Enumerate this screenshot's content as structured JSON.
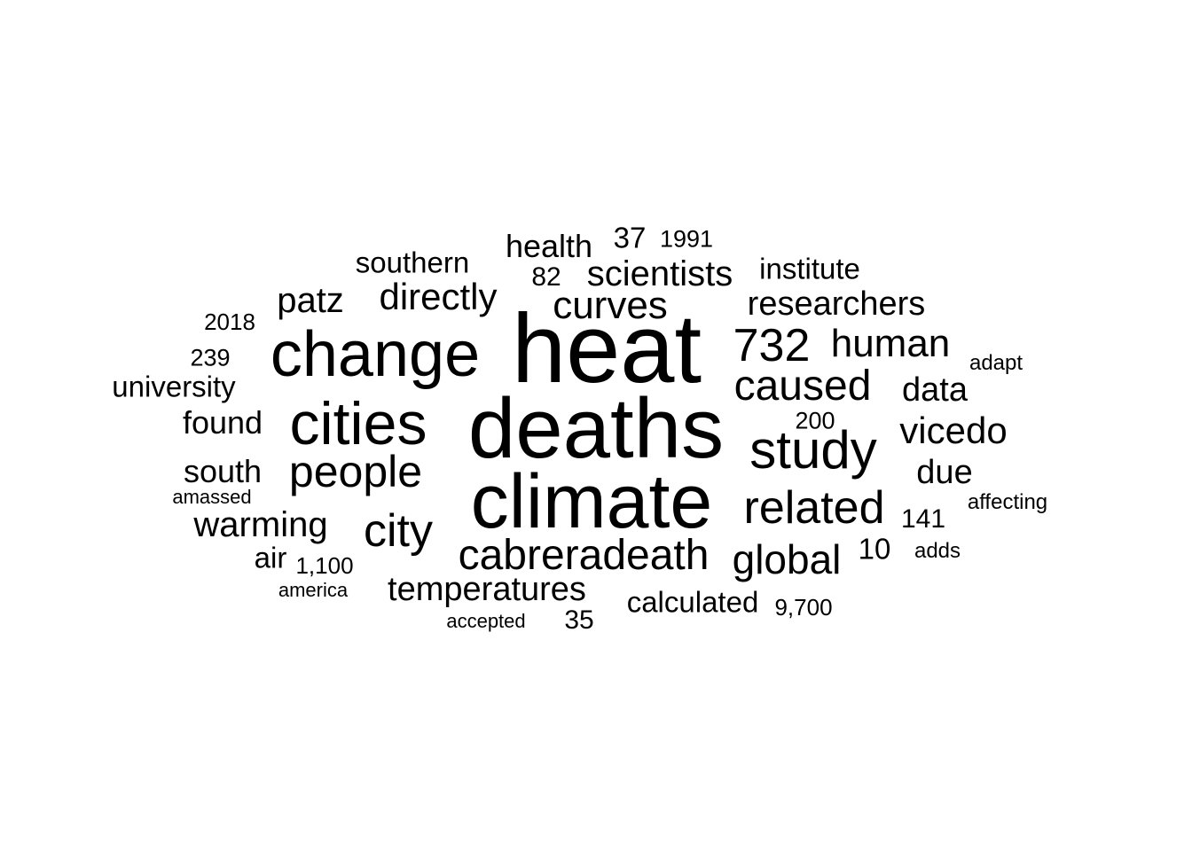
{
  "words": [
    {
      "text": "heat"
    },
    {
      "text": "deaths"
    },
    {
      "text": "climate"
    },
    {
      "text": "change"
    },
    {
      "text": "cities"
    },
    {
      "text": "study"
    },
    {
      "text": "732"
    },
    {
      "text": "caused"
    },
    {
      "text": "related"
    },
    {
      "text": "people"
    },
    {
      "text": "city"
    },
    {
      "text": "cabreradeath"
    },
    {
      "text": "global"
    },
    {
      "text": "human"
    },
    {
      "text": "curves"
    },
    {
      "text": "vicedo"
    },
    {
      "text": "directly"
    },
    {
      "text": "scientists"
    },
    {
      "text": "researchers"
    },
    {
      "text": "warming"
    },
    {
      "text": "temperatures"
    },
    {
      "text": "patz"
    },
    {
      "text": "data"
    },
    {
      "text": "due"
    },
    {
      "text": "health"
    },
    {
      "text": "south"
    },
    {
      "text": "found"
    },
    {
      "text": "university"
    },
    {
      "text": "southern"
    },
    {
      "text": "institute"
    },
    {
      "text": "calculated"
    },
    {
      "text": "37"
    },
    {
      "text": "10"
    },
    {
      "text": "141"
    },
    {
      "text": "35"
    },
    {
      "text": "air"
    },
    {
      "text": "1991"
    },
    {
      "text": "82"
    },
    {
      "text": "2018"
    },
    {
      "text": "239"
    },
    {
      "text": "200"
    },
    {
      "text": "1,100"
    },
    {
      "text": "9,700"
    },
    {
      "text": "adapt"
    },
    {
      "text": "affecting"
    },
    {
      "text": "adds"
    },
    {
      "text": "amassed"
    },
    {
      "text": "america"
    },
    {
      "text": "accepted"
    }
  ],
  "colors": {
    "background": "#ffffff",
    "text": "#000000"
  }
}
